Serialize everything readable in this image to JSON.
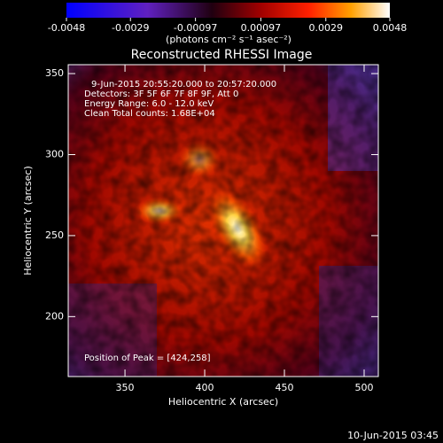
{
  "chart_data": {
    "type": "image",
    "title": "Reconstructed RHESSI Image",
    "colorbar_label": "(photons cm⁻² s⁻¹ asec⁻²)",
    "colorbar_lim": [
      -0.0048,
      0.0048
    ],
    "colorbar_ticks": [
      -0.0048,
      -0.0029,
      -0.00097,
      0.00097,
      0.0029,
      0.0048
    ],
    "x_label": "Heliocentric X (arcsec)",
    "y_label": "Heliocentric Y (arcsec)",
    "xlim": [
      314.4,
      508.9
    ],
    "xticks": [
      350,
      400,
      450,
      500
    ],
    "ylim": [
      163,
      355.5
    ],
    "yticks": [
      200,
      250,
      300,
      350
    ],
    "annotations": [
      "9-Jun-2015 20:55:20.000 to 20:57:20.000",
      "Detectors: 3F 5F 6F 7F 8F 9F, Att 0",
      "Energy Range: 6.0 - 12.0 keV",
      "Clean     Total counts: 1.68E+04"
    ],
    "peak_label": "Position of Peak = [424,258]",
    "footer": "10-Jun-2015 03:45"
  }
}
